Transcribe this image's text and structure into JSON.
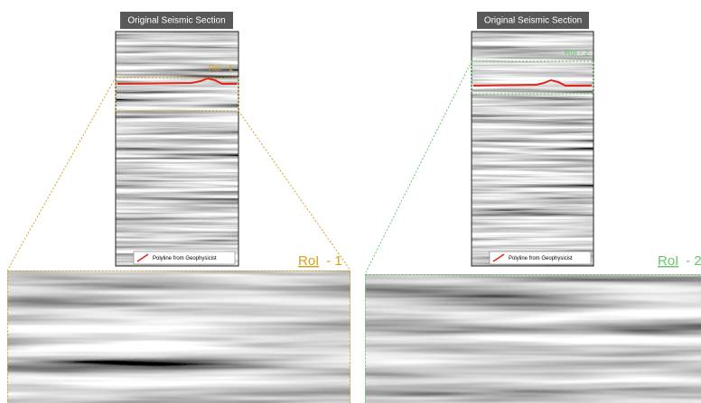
{
  "panels": [
    {
      "title": "Original Seismic Section",
      "roi_label": "RoI - 1",
      "legend": "Polyline from Geophysicist",
      "zoom_name": "RoI",
      "zoom_suffix": " - 1"
    },
    {
      "title": "Original Seismic Section",
      "roi_label": "RoI - 2",
      "legend": "Polyline from Geophysicist",
      "zoom_name": "RoI",
      "zoom_suffix": " - 2"
    }
  ]
}
